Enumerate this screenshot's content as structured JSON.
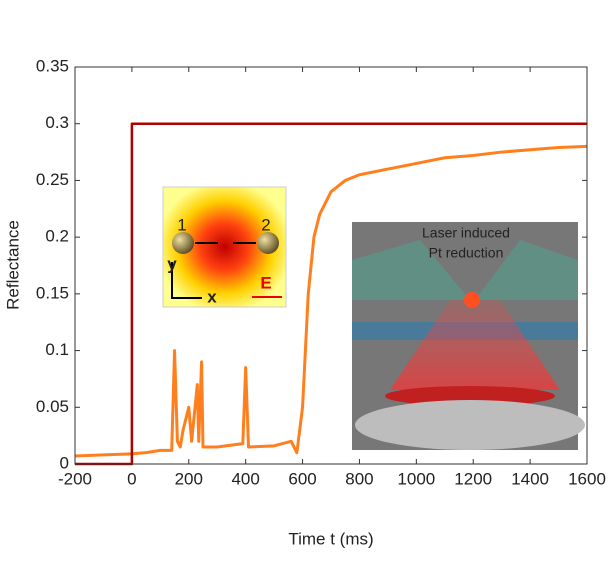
{
  "chart_data": {
    "type": "line",
    "xlabel": "Time t (ms)",
    "ylabel": "Reflectance",
    "xlim": [
      -200,
      1600
    ],
    "xticks": [
      -200,
      0,
      200,
      400,
      600,
      800,
      1000,
      1200,
      1400,
      1600
    ],
    "ylim": [
      0,
      0.35
    ],
    "yticks": [
      0,
      0.05,
      0.1,
      0.15,
      0.2,
      0.25,
      0.3,
      0.35
    ],
    "series": [
      {
        "color": "#ff7f1e",
        "x": [
          -200,
          -100,
          0,
          50,
          100,
          140,
          150,
          160,
          170,
          180,
          200,
          210,
          230,
          235,
          245,
          250,
          300,
          390,
          400,
          410,
          500,
          560,
          580,
          600,
          620,
          640,
          660,
          700,
          750,
          800,
          900,
          1000,
          1100,
          1200,
          1300,
          1400,
          1500,
          1600
        ],
        "values": [
          0.007,
          0.008,
          0.009,
          0.01,
          0.012,
          0.012,
          0.1,
          0.02,
          0.015,
          0.03,
          0.05,
          0.02,
          0.07,
          0.02,
          0.09,
          0.015,
          0.015,
          0.018,
          0.085,
          0.015,
          0.016,
          0.02,
          0.01,
          0.05,
          0.15,
          0.2,
          0.22,
          0.24,
          0.25,
          0.255,
          0.26,
          0.265,
          0.27,
          0.272,
          0.275,
          0.277,
          0.279,
          0.28
        ]
      },
      {
        "color": "#b00000",
        "x": [
          -200,
          0,
          0,
          1600
        ],
        "values": [
          0,
          0,
          0.3,
          0.3
        ]
      }
    ],
    "annotations": [
      "1",
      "2",
      "y",
      "x",
      "E",
      "Laser induced",
      "Pt reduction"
    ]
  }
}
